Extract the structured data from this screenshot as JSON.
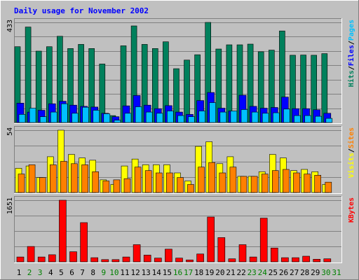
{
  "chart_data": {
    "type": "bar",
    "title": "Daily usage for November 2002",
    "categories": [
      "1",
      "2",
      "3",
      "4",
      "5",
      "6",
      "7",
      "8",
      "9",
      "10",
      "11",
      "12",
      "13",
      "14",
      "15",
      "16",
      "17",
      "18",
      "19",
      "20",
      "21",
      "22",
      "23",
      "24",
      "25",
      "26",
      "27",
      "28",
      "29",
      "30",
      "31"
    ],
    "weekend_days": [
      "2",
      "3",
      "9",
      "10",
      "16",
      "17",
      "23",
      "24",
      "30",
      "31"
    ],
    "colors": {
      "title": "#0000FF",
      "hits": "#00805C",
      "files": "#0000FF",
      "pages": "#00C0FF",
      "visits": "#FFFF00",
      "sites": "#FF8000",
      "kbytes": "#FF0000",
      "weekday_label": "#000000",
      "weekend_label": "#008000"
    },
    "panels": [
      {
        "id": "hits-panel",
        "max_label": "433",
        "max": 433,
        "side_labels": [
          {
            "text": "Hits",
            "color": "#00805C"
          },
          {
            "text": "/",
            "color": "#000000"
          },
          {
            "text": "Files",
            "color": "#0000FF"
          },
          {
            "text": "/",
            "color": "#000000"
          },
          {
            "text": "Pages",
            "color": "#00C0FF"
          }
        ],
        "series": [
          {
            "name": "Hits",
            "color": "#00805C",
            "values": [
              328,
              413,
              309,
              328,
              373,
              320,
              338,
              320,
              253,
              30,
              332,
              418,
              338,
              320,
              349,
              233,
              270,
              293,
              433,
              318,
              336,
              336,
              339,
              306,
              313,
              396,
              291,
              292,
              291,
              298,
              0
            ]
          },
          {
            "name": "Files",
            "color": "#0000FF",
            "values": [
              84,
              45,
              53,
              81,
              92,
              75,
              70,
              67,
              40,
              25,
              72,
              117,
              75,
              60,
              73,
              45,
              35,
              95,
              130,
              62,
              50,
              118,
              70,
              62,
              65,
              110,
              60,
              60,
              55,
              40,
              0
            ]
          },
          {
            "name": "Pages",
            "color": "#00C0FF",
            "values": [
              35,
              62,
              25,
              45,
              81,
              40,
              66,
              53,
              38,
              10,
              40,
              68,
              45,
              40,
              50,
              30,
              25,
              50,
              86,
              45,
              50,
              56,
              45,
              40,
              42,
              58,
              30,
              30,
              27,
              18,
              0
            ]
          }
        ]
      },
      {
        "id": "visits-panel",
        "max_label": "54",
        "max": 54,
        "side_labels": [
          {
            "text": "Visits",
            "color": "#FFFF00"
          },
          {
            "text": "/",
            "color": "#000000"
          },
          {
            "text": "Sites",
            "color": "#FF8000"
          }
        ],
        "series": [
          {
            "name": "Visits",
            "color": "#FFFF00",
            "values": [
              21,
              23,
              13,
              31,
              54,
              33,
              30,
              28,
              11,
              7,
              23,
              29,
              24,
              24,
              24,
              17,
              10,
              40,
              44,
              25,
              31,
              14,
              14,
              18,
              33,
              30,
              19,
              20,
              18,
              7,
              0
            ]
          },
          {
            "name": "Sites",
            "color": "#FF8000",
            "values": [
              16,
              24,
              13,
              24,
              27,
              25,
              24,
              18,
              10,
              11,
              12,
              22,
              19,
              17,
              17,
              13,
              7,
              22,
              26,
              17,
              22,
              14,
              14,
              16,
              19,
              20,
              17,
              16,
              15,
              9,
              0
            ]
          }
        ]
      },
      {
        "id": "kbytes-panel",
        "max_label": "1651",
        "max": 1651,
        "side_labels": [
          {
            "text": "KBytes",
            "color": "#FF0000"
          }
        ],
        "series": [
          {
            "name": "KBytes",
            "color": "#FF0000",
            "values": [
              130,
              410,
              130,
              190,
              1651,
              270,
              1050,
              110,
              60,
              60,
              130,
              460,
              180,
              100,
              340,
              100,
              50,
              210,
              1200,
              650,
              80,
              460,
              130,
              1170,
              370,
              110,
              110,
              150,
              70,
              80,
              0
            ]
          }
        ]
      }
    ]
  }
}
